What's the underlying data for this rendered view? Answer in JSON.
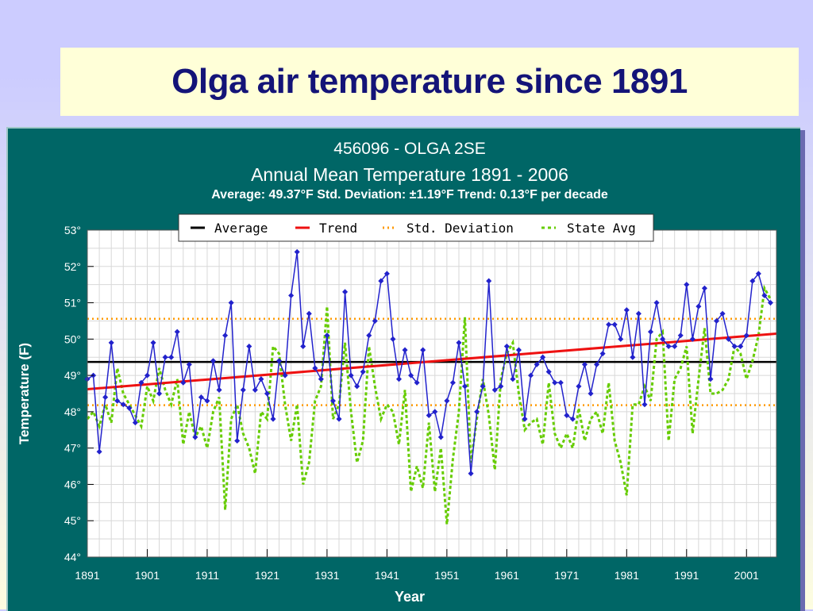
{
  "slide": {
    "title": "Olga air temperature since 1891"
  },
  "chart_data": {
    "type": "line",
    "station": "456096 - OLGA 2SE",
    "title": "Annual Mean Temperature 1891 - 2006",
    "subtitle": "Average: 49.37°F Std. Deviation: ±1.19°F Trend: 0.13°F per decade",
    "xlabel": "Year",
    "ylabel": "Temperature (F)",
    "xlim": [
      1891,
      2006
    ],
    "ylim": [
      44,
      53
    ],
    "x_ticks": [
      "1891",
      "1901",
      "1911",
      "1921",
      "1931",
      "1941",
      "1951",
      "1961",
      "1971",
      "1981",
      "1991",
      "2001"
    ],
    "y_ticks": [
      "44°",
      "45°",
      "46°",
      "47°",
      "48°",
      "49°",
      "50°",
      "51°",
      "52°",
      "53°"
    ],
    "grid": true,
    "legend_position": "top",
    "average": 49.37,
    "std_deviation": 1.19,
    "std_band": [
      48.18,
      50.56
    ],
    "trend": {
      "start": [
        1891,
        48.62
      ],
      "end": [
        2006,
        50.15
      ]
    },
    "colors": {
      "annual": "#2222cc",
      "average": "#000000",
      "trend": "#ee1111",
      "std": "#ff9900",
      "state": "#66cc00",
      "frame": "#006666"
    },
    "legend": [
      {
        "label": "Average",
        "style": "solid",
        "color": "#000000"
      },
      {
        "label": "Trend",
        "style": "solid",
        "color": "#ee1111"
      },
      {
        "label": "Std. Deviation",
        "style": "dotted",
        "color": "#ff9900"
      },
      {
        "label": "State Avg",
        "style": "dashed",
        "color": "#66cc00"
      }
    ],
    "series": [
      {
        "name": "Annual Mean",
        "x_start": 1891,
        "values": [
          48.9,
          49.0,
          46.9,
          48.4,
          49.9,
          48.3,
          48.2,
          48.1,
          47.7,
          48.8,
          49.0,
          49.9,
          48.5,
          49.5,
          49.5,
          50.2,
          48.8,
          49.3,
          47.3,
          48.4,
          48.3,
          49.4,
          48.6,
          50.1,
          51.0,
          47.2,
          48.6,
          49.8,
          48.6,
          48.9,
          48.5,
          47.8,
          49.4,
          49.0,
          51.2,
          52.4,
          49.8,
          50.7,
          49.2,
          48.9,
          50.1,
          48.3,
          47.8,
          51.3,
          49.0,
          48.7,
          49.1,
          50.1,
          50.5,
          51.6,
          51.8,
          50.0,
          48.9,
          49.7,
          49.0,
          48.8,
          49.7,
          47.9,
          48.0,
          47.3,
          48.3,
          48.8,
          49.9,
          48.7,
          46.3,
          48.0,
          48.7,
          51.6,
          48.6,
          48.7,
          49.8,
          48.9,
          49.7,
          47.8,
          49.0,
          49.3,
          49.5,
          49.1,
          48.8,
          48.8,
          47.9,
          47.8,
          48.7,
          49.3,
          48.5,
          49.3,
          49.6,
          50.4,
          50.4,
          50.0,
          50.8,
          49.5,
          50.7,
          48.2,
          50.2,
          51.0,
          50.0,
          49.8,
          49.8,
          50.1,
          51.5,
          50.0,
          50.9,
          51.4,
          48.9,
          50.5,
          50.7,
          50.0,
          49.8,
          49.8,
          50.1,
          51.6,
          51.8,
          51.2,
          51.0
        ]
      },
      {
        "name": "State Avg",
        "x_start": 1891,
        "values": [
          47.8,
          48.0,
          47.6,
          48.2,
          47.7,
          49.2,
          48.5,
          48.2,
          47.9,
          47.6,
          48.7,
          48.3,
          49.2,
          48.6,
          48.2,
          48.9,
          47.1,
          48.0,
          47.3,
          47.6,
          47.0,
          48.0,
          48.4,
          45.3,
          47.8,
          48.2,
          47.4,
          47.0,
          46.3,
          48.0,
          47.8,
          49.8,
          49.6,
          48.2,
          47.2,
          48.2,
          46.0,
          46.6,
          48.3,
          48.7,
          50.9,
          47.8,
          48.2,
          49.9,
          48.0,
          46.6,
          47.2,
          49.8,
          48.7,
          47.8,
          48.2,
          48.0,
          47.1,
          48.6,
          45.8,
          46.5,
          45.9,
          47.7,
          45.8,
          47.0,
          44.9,
          46.7,
          48.0,
          50.6,
          46.6,
          47.8,
          48.9,
          47.9,
          46.4,
          48.9,
          49.6,
          49.9,
          48.5,
          47.5,
          47.7,
          47.8,
          47.1,
          48.8,
          47.4,
          47.0,
          47.4,
          47.0,
          48.1,
          47.2,
          47.8,
          48.0,
          47.4,
          48.8,
          47.2,
          46.6,
          45.7,
          48.2,
          48.2,
          48.7,
          48.3,
          50.0,
          50.2,
          47.2,
          48.9,
          49.2,
          49.8,
          47.4,
          48.9,
          50.3,
          48.5,
          48.5,
          48.6,
          48.9,
          49.8,
          49.6,
          48.9,
          49.4,
          50.1,
          51.4,
          51.1
        ]
      }
    ]
  }
}
